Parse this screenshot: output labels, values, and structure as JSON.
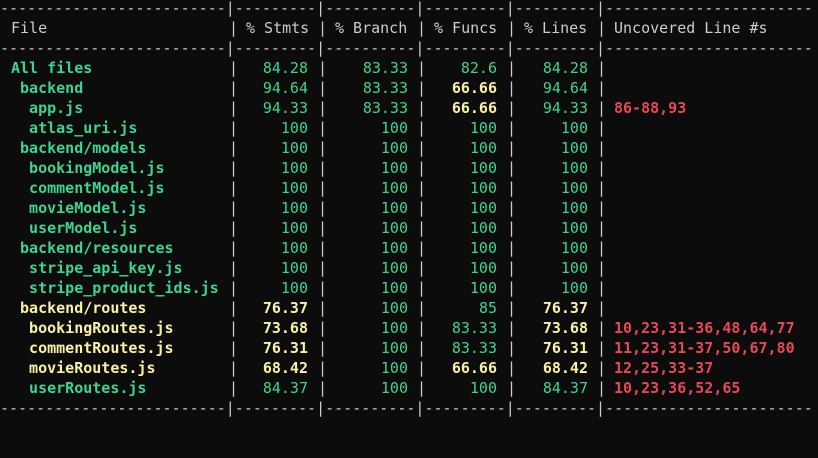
{
  "separator": "-------------------------|---------|----------|---------|---------|-----------------------",
  "headers": {
    "file": "File",
    "stmts": "% Stmts",
    "branch": "% Branch",
    "funcs": "% Funcs",
    "lines": "% Lines",
    "uncovered": "Uncovered Line #s"
  },
  "rows": [
    {
      "file": "All files",
      "stmts": "84.28",
      "branch": "83.33",
      "funcs": "82.6",
      "lines": "84.28",
      "uncovered": ""
    },
    {
      "file": " backend",
      "stmts": "94.64",
      "branch": "83.33",
      "funcs": "66.66",
      "lines": "94.64",
      "uncovered": ""
    },
    {
      "file": "  app.js",
      "stmts": "94.33",
      "branch": "83.33",
      "funcs": "66.66",
      "lines": "94.33",
      "uncovered": "86-88,93"
    },
    {
      "file": "  atlas_uri.js",
      "stmts": "100",
      "branch": "100",
      "funcs": "100",
      "lines": "100",
      "uncovered": ""
    },
    {
      "file": " backend/models",
      "stmts": "100",
      "branch": "100",
      "funcs": "100",
      "lines": "100",
      "uncovered": ""
    },
    {
      "file": "  bookingModel.js",
      "stmts": "100",
      "branch": "100",
      "funcs": "100",
      "lines": "100",
      "uncovered": ""
    },
    {
      "file": "  commentModel.js",
      "stmts": "100",
      "branch": "100",
      "funcs": "100",
      "lines": "100",
      "uncovered": ""
    },
    {
      "file": "  movieModel.js",
      "stmts": "100",
      "branch": "100",
      "funcs": "100",
      "lines": "100",
      "uncovered": ""
    },
    {
      "file": "  userModel.js",
      "stmts": "100",
      "branch": "100",
      "funcs": "100",
      "lines": "100",
      "uncovered": ""
    },
    {
      "file": " backend/resources",
      "stmts": "100",
      "branch": "100",
      "funcs": "100",
      "lines": "100",
      "uncovered": ""
    },
    {
      "file": "  stripe_api_key.js",
      "stmts": "100",
      "branch": "100",
      "funcs": "100",
      "lines": "100",
      "uncovered": ""
    },
    {
      "file": "  stripe_product_ids.js",
      "stmts": "100",
      "branch": "100",
      "funcs": "100",
      "lines": "100",
      "uncovered": ""
    },
    {
      "file": " backend/routes",
      "stmts": "76.37",
      "branch": "100",
      "funcs": "85",
      "lines": "76.37",
      "uncovered": ""
    },
    {
      "file": "  bookingRoutes.js",
      "stmts": "73.68",
      "branch": "100",
      "funcs": "83.33",
      "lines": "73.68",
      "uncovered": "10,23,31-36,48,64,77"
    },
    {
      "file": "  commentRoutes.js",
      "stmts": "76.31",
      "branch": "100",
      "funcs": "83.33",
      "lines": "76.31",
      "uncovered": "11,23,31-37,50,67,80"
    },
    {
      "file": "  movieRoutes.js",
      "stmts": "68.42",
      "branch": "100",
      "funcs": "66.66",
      "lines": "68.42",
      "uncovered": "12,25,33-37"
    },
    {
      "file": "  userRoutes.js",
      "stmts": "84.37",
      "branch": "100",
      "funcs": "100",
      "lines": "84.37",
      "uncovered": "10,23,36,52,65"
    }
  ],
  "colors": {
    "background": "#0c0c0c",
    "text": "#cccccc",
    "high": "#3ed48f",
    "medium": "#f9f1a5",
    "low": "#e74856"
  }
}
